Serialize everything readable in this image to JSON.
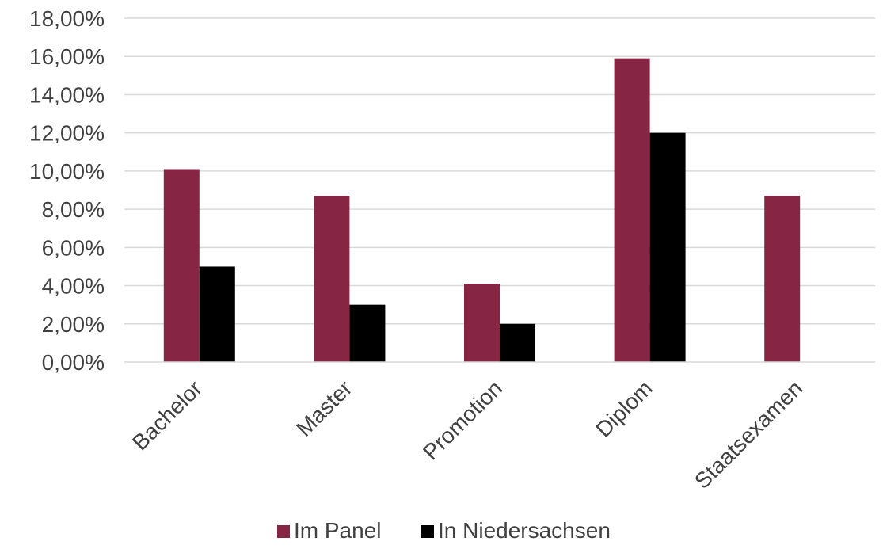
{
  "chart_data": {
    "type": "bar",
    "title": "",
    "xlabel": "",
    "ylabel": "",
    "categories": [
      "Bachelor",
      "Master",
      "Promotion",
      "Diplom",
      "Staatsexamen"
    ],
    "series": [
      {
        "name": "Im Panel",
        "color": "#862644",
        "values": [
          10.1,
          8.7,
          4.1,
          15.9,
          8.7
        ]
      },
      {
        "name": "In Niedersachsen",
        "color": "#000000",
        "values": [
          5.0,
          3.0,
          2.0,
          12.0,
          null
        ]
      }
    ],
    "ylim": [
      0,
      18
    ],
    "yticks": [
      "0,00%",
      "2,00%",
      "4,00%",
      "6,00%",
      "8,00%",
      "10,00%",
      "12,00%",
      "14,00%",
      "16,00%",
      "18,00%"
    ],
    "grid": true,
    "legend": "bottom"
  }
}
